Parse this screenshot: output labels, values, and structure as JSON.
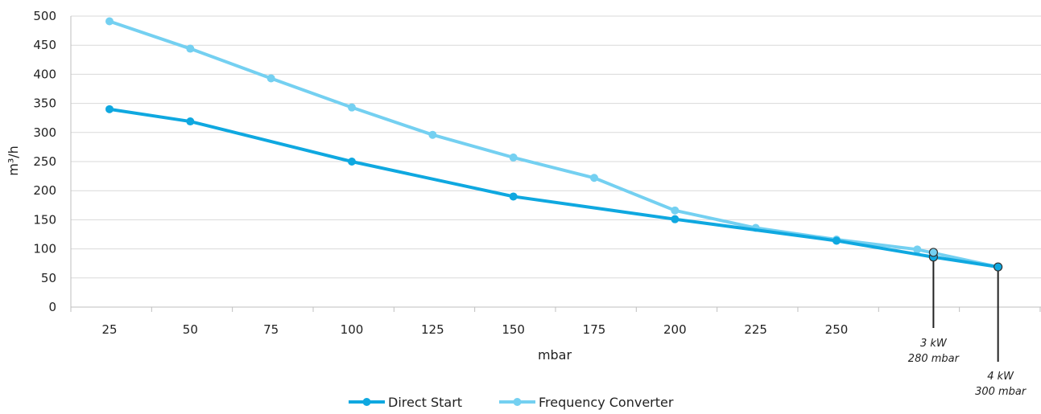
{
  "chart_data": {
    "type": "line",
    "xlabel": "mbar",
    "ylabel": "m³/h",
    "ylim": [
      0,
      500
    ],
    "yticks": [
      "0",
      "50",
      "100",
      "150",
      "200",
      "250",
      "300",
      "350",
      "400",
      "450",
      "500"
    ],
    "xticks": [
      "25",
      "50",
      "75",
      "100",
      "125",
      "150",
      "175",
      "200",
      "225",
      "250"
    ],
    "grid": "horizontal",
    "legend_position": "bottom",
    "series": [
      {
        "name": "Direct Start",
        "color": "#0fa8e0",
        "x": [
          25,
          50,
          100,
          150,
          200,
          250,
          280,
          300
        ],
        "y": [
          340,
          319,
          250,
          190,
          151,
          114,
          86,
          69
        ]
      },
      {
        "name": "Frequency Converter",
        "color": "#74d0f1",
        "x": [
          25,
          50,
          75,
          100,
          125,
          150,
          175,
          200,
          225,
          250,
          275,
          300
        ],
        "y": [
          491,
          444,
          393,
          343,
          296,
          257,
          222,
          166,
          136,
          116,
          99,
          69
        ]
      }
    ],
    "annotations": [
      {
        "power": "3 kW",
        "pressure": "280 mbar",
        "x": 280,
        "y": 90
      },
      {
        "power": "4 kW",
        "pressure": "300 mbar",
        "x": 300,
        "y": 69
      }
    ]
  }
}
